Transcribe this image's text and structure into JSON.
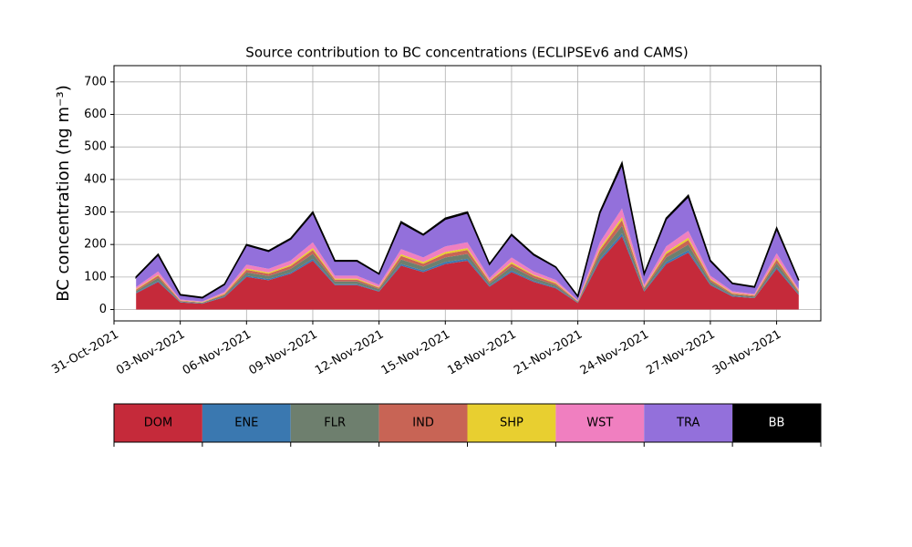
{
  "chart_data": {
    "type": "stacked_area",
    "title": "Source contribution to BC concentrations (ECLIPSEv6 and CAMS)",
    "y_label": "BC concentration (ng m⁻³)",
    "x": [
      "2021-11-01",
      "2021-11-02",
      "2021-11-03",
      "2021-11-04",
      "2021-11-05",
      "2021-11-06",
      "2021-11-07",
      "2021-11-08",
      "2021-11-09",
      "2021-11-10",
      "2021-11-11",
      "2021-11-12",
      "2021-11-13",
      "2021-11-14",
      "2021-11-15",
      "2021-11-16",
      "2021-11-17",
      "2021-11-18",
      "2021-11-19",
      "2021-11-20",
      "2021-11-21",
      "2021-11-22",
      "2021-11-23",
      "2021-11-24",
      "2021-11-25",
      "2021-11-26",
      "2021-11-27",
      "2021-11-28",
      "2021-11-29",
      "2021-11-30",
      "2021-12-01"
    ],
    "series": [
      {
        "name": "DOM",
        "color": "#c52a3a",
        "values": [
          50,
          85,
          22,
          18,
          38,
          100,
          90,
          110,
          150,
          75,
          75,
          55,
          135,
          115,
          140,
          150,
          70,
          115,
          85,
          65,
          20,
          150,
          225,
          55,
          140,
          175,
          75,
          40,
          35,
          125,
          45
        ]
      },
      {
        "name": "ENE",
        "color": "#3a78b0",
        "values": [
          2,
          3,
          1,
          1,
          2,
          4,
          4,
          4,
          6,
          3,
          3,
          2,
          5,
          5,
          6,
          6,
          3,
          5,
          3,
          3,
          1,
          6,
          9,
          2,
          6,
          7,
          3,
          2,
          1,
          5,
          2
        ]
      },
      {
        "name": "FLR",
        "color": "#6e7f6e",
        "values": [
          5,
          9,
          2,
          2,
          4,
          10,
          9,
          11,
          15,
          8,
          8,
          6,
          14,
          12,
          14,
          15,
          7,
          12,
          9,
          7,
          2,
          15,
          23,
          6,
          14,
          18,
          8,
          4,
          4,
          13,
          5
        ]
      },
      {
        "name": "IND",
        "color": "#c86455",
        "values": [
          4,
          7,
          2,
          1,
          3,
          8,
          7,
          9,
          12,
          6,
          6,
          4,
          11,
          9,
          11,
          12,
          6,
          9,
          7,
          5,
          2,
          12,
          18,
          4,
          11,
          14,
          6,
          3,
          3,
          10,
          4
        ]
      },
      {
        "name": "SHP",
        "color": "#e8cf30",
        "values": [
          2,
          3,
          1,
          1,
          2,
          4,
          4,
          4,
          6,
          3,
          3,
          2,
          5,
          5,
          6,
          6,
          3,
          5,
          3,
          3,
          1,
          6,
          9,
          2,
          6,
          7,
          3,
          2,
          1,
          5,
          2
        ]
      },
      {
        "name": "WST",
        "color": "#f07fc0",
        "values": [
          6,
          10,
          3,
          2,
          5,
          12,
          11,
          13,
          18,
          9,
          9,
          7,
          16,
          14,
          17,
          18,
          8,
          14,
          10,
          8,
          2,
          18,
          27,
          7,
          17,
          21,
          9,
          5,
          4,
          15,
          5
        ]
      },
      {
        "name": "TRA",
        "color": "#9370db",
        "values": [
          30,
          51,
          14,
          11,
          23,
          60,
          54,
          66,
          90,
          45,
          45,
          33,
          81,
          69,
          84,
          90,
          42,
          69,
          51,
          39,
          12,
          90,
          135,
          33,
          84,
          105,
          45,
          24,
          21,
          75,
          27
        ]
      },
      {
        "name": "BB",
        "color": "#000000",
        "values": [
          1,
          2,
          1,
          1,
          1,
          2,
          2,
          2,
          3,
          2,
          2,
          1,
          3,
          2,
          3,
          3,
          1,
          2,
          2,
          1,
          1,
          3,
          5,
          1,
          3,
          4,
          2,
          1,
          1,
          3,
          1
        ]
      }
    ],
    "xlim": [
      "2021-10-31",
      "2021-12-02"
    ],
    "xticks": [
      {
        "value": "2021-10-31",
        "label": "31-Oct-2021"
      },
      {
        "value": "2021-11-03",
        "label": "03-Nov-2021"
      },
      {
        "value": "2021-11-06",
        "label": "06-Nov-2021"
      },
      {
        "value": "2021-11-09",
        "label": "09-Nov-2021"
      },
      {
        "value": "2021-11-12",
        "label": "12-Nov-2021"
      },
      {
        "value": "2021-11-15",
        "label": "15-Nov-2021"
      },
      {
        "value": "2021-11-18",
        "label": "18-Nov-2021"
      },
      {
        "value": "2021-11-21",
        "label": "21-Nov-2021"
      },
      {
        "value": "2021-11-24",
        "label": "24-Nov-2021"
      },
      {
        "value": "2021-11-27",
        "label": "27-Nov-2021"
      },
      {
        "value": "2021-11-30",
        "label": "30-Nov-2021"
      }
    ],
    "ylim": [
      -35,
      750
    ],
    "yticks": [
      0,
      100,
      200,
      300,
      400,
      500,
      600,
      700
    ],
    "grid": true
  }
}
